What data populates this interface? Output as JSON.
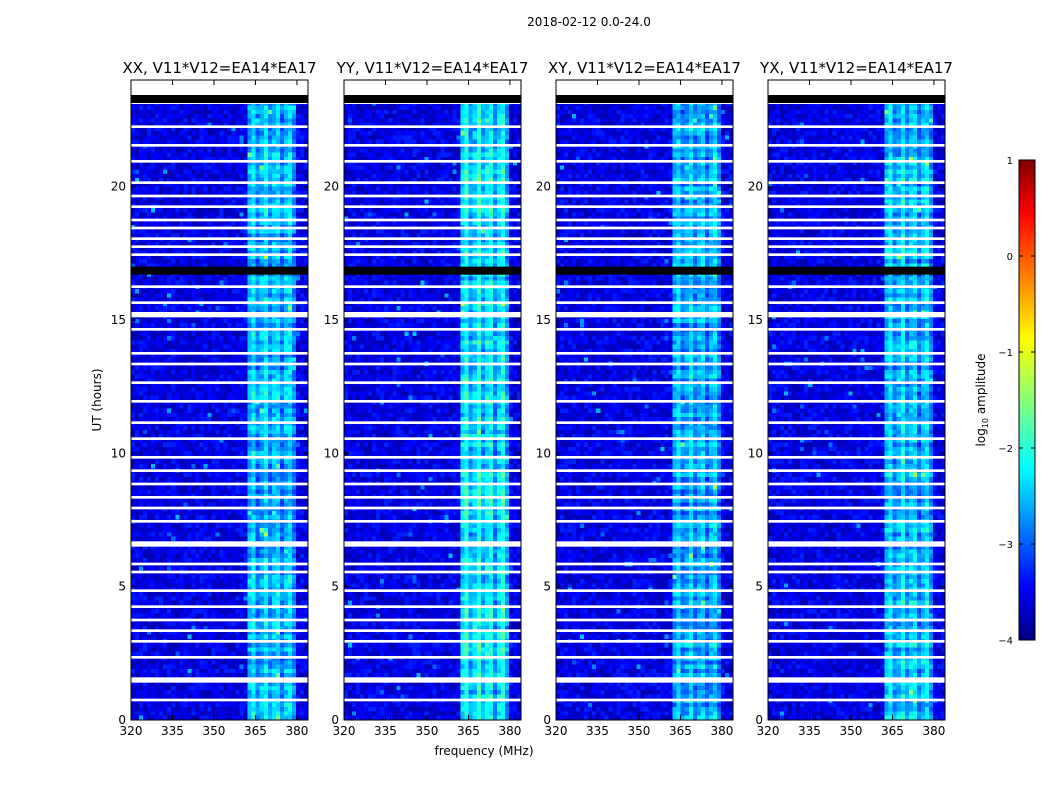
{
  "chart_data": {
    "type": "heatmap",
    "suptitle": "2018-02-12 0.0-24.0",
    "xlabel": "frequency (MHz)",
    "ylabel": "UT (hours)",
    "xlim": [
      320,
      384
    ],
    "ylim": [
      0,
      24
    ],
    "xticks": [
      320,
      335,
      350,
      365,
      380
    ],
    "yticks": [
      0,
      5,
      10,
      15,
      20
    ],
    "panels": [
      {
        "title": "XX, V11*V12=EA14*EA17",
        "band_strength": 0.8
      },
      {
        "title": "YY, V11*V12=EA14*EA17",
        "band_strength": 1.0
      },
      {
        "title": "XY, V11*V12=EA14*EA17",
        "band_strength": 0.75
      },
      {
        "title": "YX, V11*V12=EA14*EA17",
        "band_strength": 0.85
      }
    ],
    "background_log10_amplitude": -3.5,
    "band_log10_amplitude": -1.8,
    "band_freq_range": [
      362,
      380
    ],
    "band_channel_centers": [
      364,
      368.5,
      372.5,
      377
    ],
    "flagged_blank_hours": [
      [
        23.1,
        23.4
      ],
      [
        22.2,
        22.3
      ],
      [
        21.5,
        21.6
      ],
      [
        20.9,
        21.0
      ],
      [
        20.1,
        20.2
      ],
      [
        19.6,
        19.7
      ],
      [
        19.2,
        19.3
      ],
      [
        18.7,
        18.8
      ],
      [
        18.4,
        18.5
      ],
      [
        18.0,
        18.1
      ],
      [
        17.7,
        17.8
      ],
      [
        17.4,
        17.5
      ],
      [
        16.2,
        16.3
      ],
      [
        15.6,
        15.7
      ],
      [
        15.1,
        15.3
      ],
      [
        14.6,
        14.7
      ],
      [
        13.7,
        13.8
      ],
      [
        13.3,
        13.4
      ],
      [
        12.6,
        12.7
      ],
      [
        11.9,
        12.0
      ],
      [
        11.1,
        11.2
      ],
      [
        10.5,
        10.6
      ],
      [
        9.8,
        9.9
      ],
      [
        9.3,
        9.4
      ],
      [
        8.8,
        8.9
      ],
      [
        8.3,
        8.4
      ],
      [
        7.9,
        8.0
      ],
      [
        7.4,
        7.5
      ],
      [
        6.5,
        6.7
      ],
      [
        5.8,
        5.9
      ],
      [
        5.5,
        5.6
      ],
      [
        4.8,
        4.9
      ],
      [
        4.2,
        4.3
      ],
      [
        3.7,
        3.8
      ],
      [
        3.3,
        3.4
      ],
      [
        2.9,
        3.0
      ],
      [
        2.3,
        2.4
      ],
      [
        1.4,
        1.6
      ],
      [
        0.7,
        0.8
      ]
    ],
    "flagged_black_hours": [
      [
        23.5,
        23.8
      ],
      [
        16.7,
        17.0
      ]
    ],
    "colorbar": {
      "label": "log10 amplitude",
      "label_main": "log",
      "label_sub": "10",
      "label_rest": " amplitude",
      "min": -4,
      "max": 1,
      "ticks": [
        1,
        0,
        -1,
        -2,
        -3,
        -4
      ],
      "colormap": "jet"
    }
  }
}
